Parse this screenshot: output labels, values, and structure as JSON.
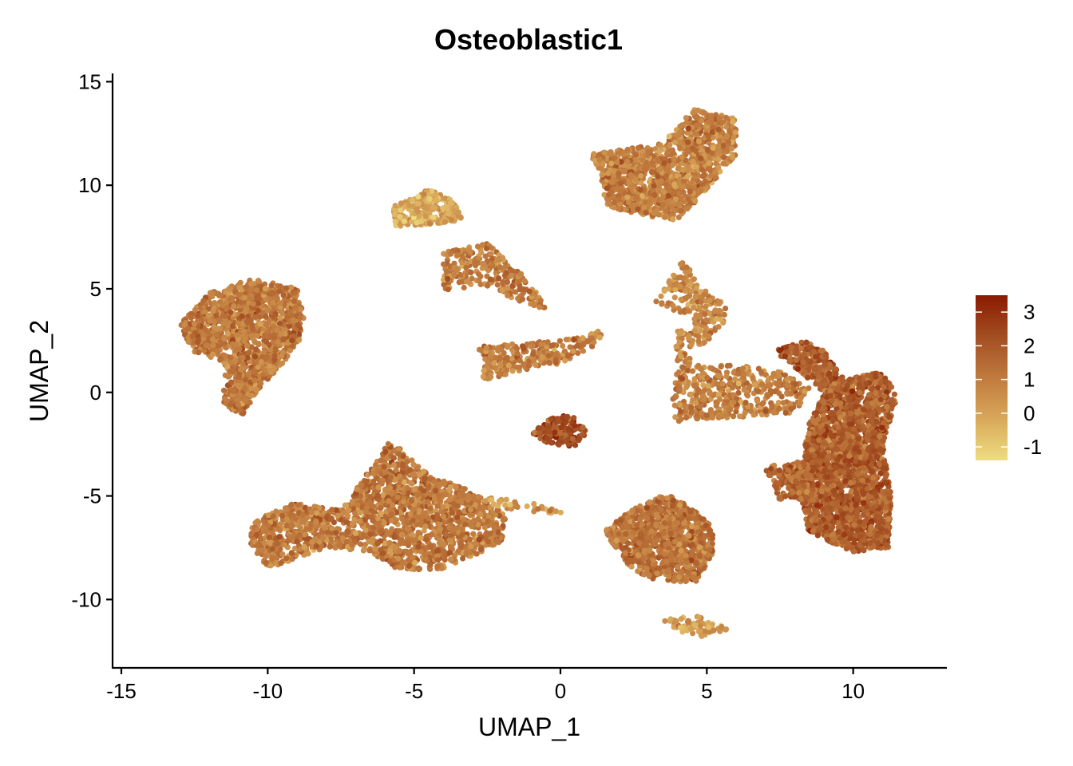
{
  "chart_data": {
    "type": "scatter",
    "title": "Osteoblastic1",
    "xlabel": "UMAP_1",
    "ylabel": "UMAP_2",
    "xlim": [
      -15.3,
      13.2
    ],
    "ylim": [
      -13.3,
      15.4
    ],
    "x_ticks": [
      -15,
      -10,
      -5,
      0,
      5,
      10
    ],
    "y_ticks": [
      15,
      10,
      5,
      0,
      -5,
      -10
    ],
    "x_tick_labels": [
      "-15",
      "-10",
      "-5",
      "0",
      "5",
      "10"
    ],
    "y_tick_labels": [
      "15",
      "10",
      "5",
      "0",
      "-5",
      "-10"
    ],
    "grid": false,
    "legend": {
      "placement": "right",
      "type": "colorbar",
      "range": [
        -1.4,
        3.5
      ],
      "ticks": [
        3,
        2,
        1,
        0,
        -1
      ],
      "tick_labels": [
        "3",
        "2",
        "1",
        "0",
        "-1"
      ],
      "colors": [
        "#EEDD82",
        "#D9A85A",
        "#C07A3E",
        "#A24E22",
        "#8B1A00"
      ]
    },
    "clusters": [
      {
        "points": [
          [
            -13.0,
            3.3
          ],
          [
            -12.0,
            4.8
          ],
          [
            -10.5,
            5.5
          ],
          [
            -9.0,
            5.0
          ],
          [
            -8.7,
            3.5
          ],
          [
            -9.0,
            2.2
          ],
          [
            -9.6,
            1.2
          ],
          [
            -10.3,
            0.2
          ],
          [
            -10.9,
            -1.2
          ],
          [
            -11.5,
            -0.5
          ],
          [
            -11.5,
            1.5
          ],
          [
            -12.6,
            2.0
          ]
        ],
        "mean": 1.1,
        "count": 1300
      },
      {
        "points": [
          [
            -5.7,
            9.0
          ],
          [
            -4.5,
            9.8
          ],
          [
            -3.7,
            9.3
          ],
          [
            -3.3,
            8.3
          ],
          [
            -4.5,
            8.1
          ],
          [
            -5.7,
            8.0
          ]
        ],
        "mean": -0.1,
        "count": 260
      },
      {
        "points": [
          [
            -4.0,
            6.8
          ],
          [
            -2.5,
            7.2
          ],
          [
            -1.5,
            6.0
          ],
          [
            -0.8,
            4.8
          ],
          [
            -0.5,
            4.0
          ],
          [
            -1.8,
            4.6
          ],
          [
            -2.8,
            5.2
          ],
          [
            -4.0,
            4.8
          ]
        ],
        "mean": 1.0,
        "count": 260
      },
      {
        "points": [
          [
            -3.0,
            2.2
          ],
          [
            -1.0,
            2.4
          ],
          [
            0.5,
            2.6
          ],
          [
            1.4,
            3.0
          ],
          [
            1.4,
            2.4
          ],
          [
            0.0,
            1.4
          ],
          [
            -1.5,
            1.0
          ],
          [
            -2.8,
            0.5
          ],
          [
            -2.5,
            1.5
          ]
        ],
        "mean": 1.0,
        "count": 260
      },
      {
        "points": [
          [
            1.0,
            11.5
          ],
          [
            3.5,
            12.0
          ],
          [
            4.5,
            13.7
          ],
          [
            6.0,
            13.2
          ],
          [
            6.0,
            11.5
          ],
          [
            5.0,
            9.8
          ],
          [
            4.0,
            8.3
          ],
          [
            3.0,
            8.5
          ],
          [
            1.5,
            9.0
          ],
          [
            1.4,
            10.5
          ]
        ],
        "mean": 0.9,
        "count": 1200
      },
      {
        "points": [
          [
            -1.0,
            -2.0
          ],
          [
            -0.2,
            -1.1
          ],
          [
            0.5,
            -1.2
          ],
          [
            0.9,
            -1.9
          ],
          [
            0.6,
            -2.6
          ],
          [
            -0.3,
            -2.6
          ]
        ],
        "mean": 2.4,
        "count": 130
      },
      {
        "points": [
          [
            -10.5,
            -6.2
          ],
          [
            -9.0,
            -5.3
          ],
          [
            -7.5,
            -5.7
          ],
          [
            -6.5,
            -3.7
          ],
          [
            -5.8,
            -2.3
          ],
          [
            -4.5,
            -4.0
          ],
          [
            -3.0,
            -4.8
          ],
          [
            -1.8,
            -6.0
          ],
          [
            -2.0,
            -7.2
          ],
          [
            -4.0,
            -8.6
          ],
          [
            -5.5,
            -8.6
          ],
          [
            -6.5,
            -7.7
          ],
          [
            -8.0,
            -7.5
          ],
          [
            -9.0,
            -8.0
          ],
          [
            -10.0,
            -8.5
          ],
          [
            -10.6,
            -7.3
          ]
        ],
        "mean": 1.1,
        "count": 1800
      },
      {
        "points": [
          [
            -3.0,
            -5.0
          ],
          [
            -1.5,
            -5.2
          ],
          [
            0.3,
            -5.7
          ],
          [
            0.0,
            -5.9
          ],
          [
            -2.0,
            -5.6
          ]
        ],
        "mean": 0.3,
        "count": 40
      },
      {
        "points": [
          [
            1.5,
            -6.7
          ],
          [
            2.5,
            -5.6
          ],
          [
            3.6,
            -4.9
          ],
          [
            4.4,
            -5.5
          ],
          [
            5.2,
            -6.5
          ],
          [
            5.2,
            -7.8
          ],
          [
            4.6,
            -9.2
          ],
          [
            3.0,
            -9.0
          ],
          [
            2.2,
            -8.2
          ]
        ],
        "mean": 1.2,
        "count": 950
      },
      {
        "points": [
          [
            3.5,
            -11.0
          ],
          [
            4.5,
            -10.7
          ],
          [
            5.8,
            -11.4
          ],
          [
            4.8,
            -11.8
          ],
          [
            4.0,
            -11.5
          ]
        ],
        "mean": 0.2,
        "count": 70
      },
      {
        "points": [
          [
            3.2,
            4.3
          ],
          [
            4.2,
            6.4
          ],
          [
            4.8,
            5.0
          ],
          [
            5.7,
            4.3
          ],
          [
            5.6,
            3.3
          ],
          [
            4.7,
            2.0
          ],
          [
            4.5,
            3.5
          ],
          [
            3.8,
            4.0
          ]
        ],
        "mean": 0.7,
        "count": 180
      },
      {
        "points": [
          [
            4.0,
            3.0
          ],
          [
            4.6,
            3.0
          ],
          [
            4.3,
            0.5
          ],
          [
            3.9,
            1.5
          ]
        ],
        "mean": 0.6,
        "count": 50
      },
      {
        "points": [
          [
            3.8,
            -0.5
          ],
          [
            4.0,
            1.3
          ],
          [
            6.0,
            1.3
          ],
          [
            7.5,
            1.0
          ],
          [
            8.5,
            0.2
          ],
          [
            8.0,
            -1.0
          ],
          [
            6.0,
            -1.2
          ],
          [
            3.9,
            -1.4
          ]
        ],
        "mean": 0.9,
        "count": 420
      },
      {
        "points": [
          [
            7.3,
            2.0
          ],
          [
            8.3,
            2.5
          ],
          [
            9.0,
            2.0
          ],
          [
            9.7,
            0.6
          ],
          [
            11.0,
            1.0
          ],
          [
            11.5,
            -0.2
          ],
          [
            11.0,
            -2.5
          ],
          [
            11.3,
            -5.0
          ],
          [
            11.2,
            -7.5
          ],
          [
            10.0,
            -7.7
          ],
          [
            8.5,
            -6.8
          ],
          [
            8.2,
            -5.0
          ],
          [
            7.5,
            -4.0
          ],
          [
            8.3,
            -3.0
          ],
          [
            8.5,
            -1.5
          ],
          [
            9.0,
            0.0
          ],
          [
            8.2,
            1.0
          ]
        ],
        "mean": 1.8,
        "count": 2500
      },
      {
        "points": [
          [
            6.9,
            -3.5
          ],
          [
            8.5,
            -3.5
          ],
          [
            8.7,
            -5.2
          ],
          [
            7.5,
            -5.2
          ]
        ],
        "mean": 1.5,
        "count": 140
      }
    ]
  }
}
